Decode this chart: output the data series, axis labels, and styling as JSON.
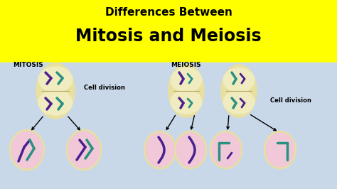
{
  "title_line1": "Differences Between",
  "title_line2": "Mitosis and Meiosis",
  "title_bg": "#FFFF00",
  "body_bg": "#c8d8e8",
  "label_mitosis": "MITOSIS",
  "label_meiosis": "MEIOSIS",
  "cell_division_text": "Cell division",
  "title_fontsize": 11,
  "subtitle_fontsize": 17,
  "label_fontsize": 6.5,
  "cell_div_fontsize": 6,
  "purple_color": "#4a2090",
  "teal_color": "#2a9080",
  "cell_outer_color": "#e8e0a0",
  "cell_inner_color": "#f0ecc0",
  "daughter_outer_color": "#e8e0a0",
  "daughter_inner_color": "#f0c8d8"
}
